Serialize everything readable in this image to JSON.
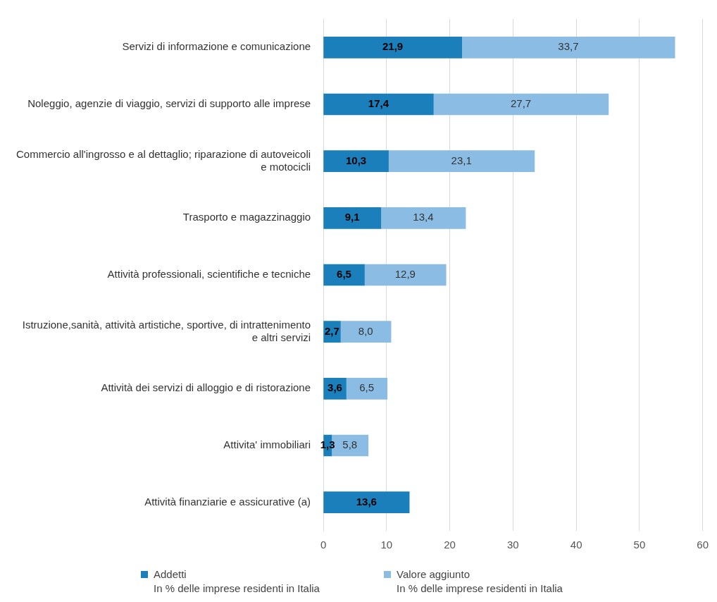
{
  "chart_data": {
    "type": "bar",
    "orientation": "horizontal",
    "stacked": true,
    "categories": [
      "Servizi di informazione e comunicazione",
      "Noleggio, agenzie di viaggio, servizi di supporto alle imprese",
      "Commercio all'ingrosso e al dettaglio; riparazione di autoveicoli e motocicli",
      "Trasporto e magazzinaggio",
      "Attività professionali, scientifiche e tecniche",
      "Istruzione,sanità, attività artistiche, sportive, di intrattenimento e altri servizi",
      "Attività dei servizi di alloggio e di ristorazione",
      "Attivita' immobiliari",
      "Attività finanziarie e assicurative (a)"
    ],
    "series": [
      {
        "name": "Addetti",
        "color": "#1a7fba",
        "values": [
          21.9,
          17.4,
          10.3,
          9.1,
          6.5,
          2.7,
          3.6,
          1.3,
          13.6
        ],
        "value_labels": [
          "21,9",
          "17,4",
          "10,3",
          "9,1",
          "6,5",
          "2,7",
          "3,6",
          "1,3",
          "13,6"
        ]
      },
      {
        "name": "Valore aggiunto",
        "color": "#8bbde4",
        "values": [
          33.7,
          27.7,
          23.1,
          13.4,
          12.9,
          8.0,
          6.5,
          5.8,
          null
        ],
        "value_labels": [
          "33,7",
          "27,7",
          "23,1",
          "13,4",
          "12,9",
          "8,0",
          "6,5",
          "5,8",
          null
        ]
      }
    ],
    "xlim": [
      0,
      60
    ],
    "xticks": [
      0,
      10,
      20,
      30,
      40,
      50,
      60
    ],
    "grid": "x",
    "legend": "bottom left",
    "annotations": [
      "In % delle imprese residenti in Italia",
      "In % delle imprese residenti in Italia"
    ]
  }
}
